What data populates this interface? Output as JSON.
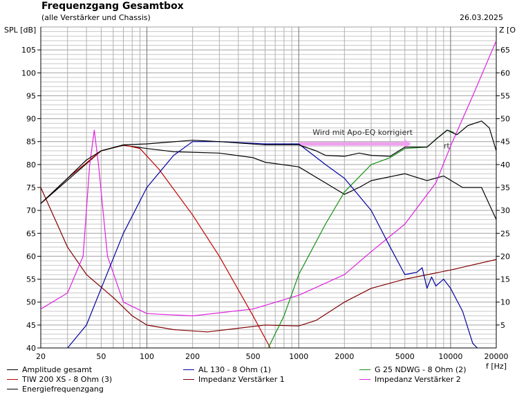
{
  "chart_data": {
    "type": "line",
    "title": "Frequenzgang Gesamtbox",
    "subtitle": "(alle Verstärker und Chassis)",
    "date": "26.03.2025",
    "xlabel": "f [Hz]",
    "ylabel": "SPL [dB]",
    "y2label": "Z [O",
    "xscale": "log",
    "xlim": [
      20,
      20000
    ],
    "ylim": [
      40,
      110
    ],
    "y2lim": [
      0,
      70
    ],
    "grid": true,
    "x_ticks": [
      20,
      50,
      100,
      200,
      500,
      1000,
      2000,
      5000,
      10000,
      20000
    ],
    "y_ticks": [
      40,
      45,
      50,
      55,
      60,
      65,
      70,
      75,
      80,
      85,
      90,
      95,
      100,
      105
    ],
    "y2_ticks": [
      5,
      10,
      15,
      20,
      25,
      30,
      35,
      40,
      45,
      50,
      55,
      60,
      65
    ],
    "series": [
      {
        "name": "Amplitude gesamt",
        "color": "#000000",
        "axis": "left",
        "points": [
          [
            20,
            71.5
          ],
          [
            30,
            77
          ],
          [
            40,
            81
          ],
          [
            50,
            83
          ],
          [
            70,
            84.3
          ],
          [
            100,
            84.5
          ],
          [
            200,
            85.3
          ],
          [
            300,
            85
          ],
          [
            400,
            84.7
          ],
          [
            600,
            84.3
          ],
          [
            1000,
            84.3
          ],
          [
            1300,
            83
          ],
          [
            1500,
            82
          ],
          [
            2000,
            81.8
          ],
          [
            2500,
            82.5
          ],
          [
            3000,
            82
          ],
          [
            4000,
            81.8
          ],
          [
            5000,
            83.8
          ],
          [
            7000,
            83.8
          ],
          [
            8000,
            85.5
          ],
          [
            9500,
            87.5
          ],
          [
            11000,
            86.5
          ],
          [
            13000,
            88.5
          ],
          [
            16000,
            89.5
          ],
          [
            18000,
            88
          ],
          [
            20000,
            83
          ]
        ]
      },
      {
        "name": "AL 130 - 8 Ohm (1)",
        "color": "#0000a0",
        "axis": "left",
        "points": [
          [
            30,
            40
          ],
          [
            40,
            45
          ],
          [
            50,
            53
          ],
          [
            70,
            65
          ],
          [
            100,
            75
          ],
          [
            150,
            82
          ],
          [
            200,
            85
          ],
          [
            300,
            85
          ],
          [
            600,
            84.5
          ],
          [
            1000,
            84.5
          ],
          [
            1500,
            80
          ],
          [
            2000,
            77
          ],
          [
            3000,
            70
          ],
          [
            4000,
            62
          ],
          [
            5000,
            56
          ],
          [
            6000,
            56.5
          ],
          [
            6500,
            57.5
          ],
          [
            7000,
            53
          ],
          [
            7500,
            55.5
          ],
          [
            8000,
            53.5
          ],
          [
            9000,
            55
          ],
          [
            10000,
            53
          ],
          [
            12000,
            48
          ],
          [
            14000,
            41
          ],
          [
            15000,
            40
          ]
        ]
      },
      {
        "name": "G 25 NDWG - 8 Ohm (2)",
        "color": "#109010",
        "axis": "left",
        "points": [
          [
            630,
            40
          ],
          [
            800,
            47
          ],
          [
            1000,
            56
          ],
          [
            1500,
            67
          ],
          [
            2000,
            74
          ],
          [
            3000,
            80
          ],
          [
            4000,
            81.5
          ],
          [
            5000,
            83.5
          ],
          [
            7000,
            83.8
          ],
          [
            8000,
            85.5
          ],
          [
            9500,
            87.5
          ],
          [
            10500,
            87
          ]
        ]
      },
      {
        "name": "TIW 200 XS - 8 Ohm (3)",
        "color": "#c00000",
        "axis": "left",
        "points": [
          [
            20,
            71.5
          ],
          [
            30,
            77
          ],
          [
            50,
            83
          ],
          [
            70,
            84.3
          ],
          [
            90,
            83.5
          ],
          [
            120,
            79
          ],
          [
            200,
            69
          ],
          [
            300,
            60
          ],
          [
            500,
            47
          ],
          [
            650,
            40
          ]
        ]
      },
      {
        "name": "Impedanz Verstärker 1",
        "color": "#800000",
        "axis": "right",
        "points": [
          [
            20,
            35
          ],
          [
            30,
            22
          ],
          [
            40,
            16
          ],
          [
            60,
            11
          ],
          [
            80,
            7
          ],
          [
            100,
            5
          ],
          [
            150,
            4
          ],
          [
            250,
            3.5
          ],
          [
            400,
            4.3
          ],
          [
            600,
            5
          ],
          [
            1000,
            4.8
          ],
          [
            1300,
            6
          ],
          [
            2000,
            10
          ],
          [
            3000,
            13
          ],
          [
            5000,
            15
          ],
          [
            10000,
            17
          ],
          [
            20000,
            19.3
          ]
        ]
      },
      {
        "name": "Impedanz Verstärker 2",
        "color": "#e020e0",
        "axis": "right",
        "points": [
          [
            20,
            8.5
          ],
          [
            30,
            12
          ],
          [
            38,
            20
          ],
          [
            42,
            40
          ],
          [
            45,
            47.5
          ],
          [
            48,
            40
          ],
          [
            55,
            20
          ],
          [
            70,
            10
          ],
          [
            100,
            7.5
          ],
          [
            200,
            7
          ],
          [
            500,
            8.5
          ],
          [
            1000,
            11.5
          ],
          [
            2000,
            16
          ],
          [
            3000,
            21
          ],
          [
            5000,
            27
          ],
          [
            8000,
            36
          ],
          [
            10000,
            44
          ],
          [
            14000,
            55
          ],
          [
            20000,
            67
          ]
        ]
      },
      {
        "name": "Energiefrequenzgang",
        "color": "#000000",
        "axis": "left",
        "points": [
          [
            20,
            71.5
          ],
          [
            50,
            83
          ],
          [
            70,
            84.2
          ],
          [
            100,
            83.5
          ],
          [
            150,
            82.8
          ],
          [
            300,
            82.5
          ],
          [
            500,
            81.5
          ],
          [
            600,
            80.5
          ],
          [
            1000,
            79.5
          ],
          [
            1500,
            76
          ],
          [
            2000,
            73.5
          ],
          [
            2500,
            75
          ],
          [
            3000,
            76.5
          ],
          [
            5000,
            78
          ],
          [
            7000,
            76.5
          ],
          [
            9000,
            77.5
          ],
          [
            12000,
            75
          ],
          [
            16000,
            75
          ],
          [
            20000,
            68
          ]
        ]
      }
    ],
    "annotations": [
      {
        "text": "Wird mit Apo-EQ korrigiert",
        "arrow_from": [
          1000,
          84.5
        ],
        "arrow_to": [
          5500,
          84.5
        ],
        "color": "#f0a0f0"
      },
      {
        "text": "rt",
        "at": [
          9000,
          83.5
        ]
      }
    ]
  }
}
